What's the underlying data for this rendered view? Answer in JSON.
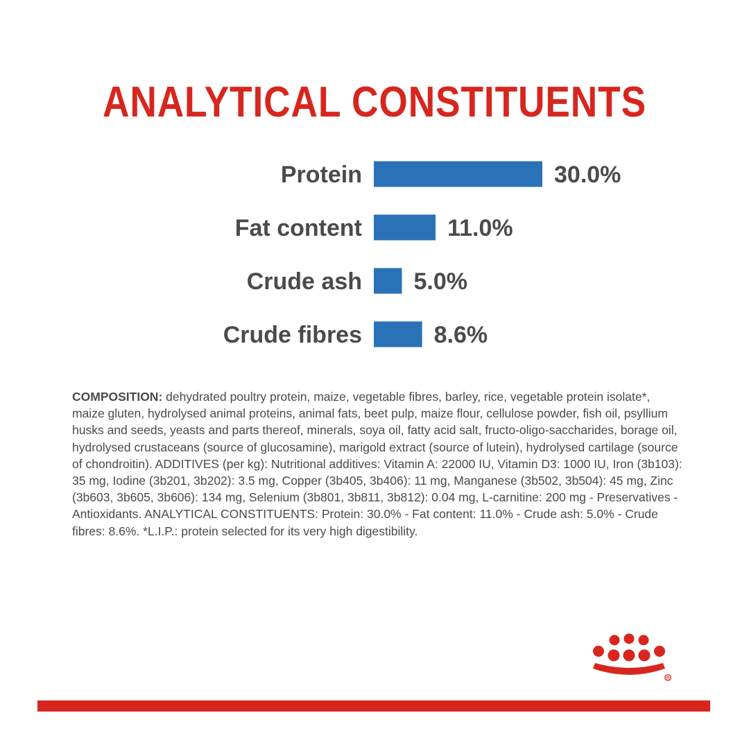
{
  "title": "ANALYTICAL CONSTITUENTS",
  "chart_data": {
    "type": "bar",
    "orientation": "horizontal",
    "categories": [
      "Protein",
      "Fat content",
      "Crude ash",
      "Crude fibres"
    ],
    "values": [
      30.0,
      11.0,
      5.0,
      8.6
    ],
    "value_labels": [
      "30.0%",
      "11.0%",
      "5.0%",
      "8.6%"
    ],
    "bar_color": "#2a72b8"
  },
  "composition": {
    "lead": "COMPOSITION:",
    "text": " dehydrated poultry protein, maize, vegetable fibres, barley, rice, vegetable protein isolate*, maize gluten, hydrolysed animal proteins, animal fats, beet pulp, maize flour, cellulose powder, fish oil, psyllium husks and seeds, yeasts and parts thereof, minerals, soya oil, fatty acid salt, fructo-oligo-saccharides, borage oil, hydrolysed crustaceans (source of glucosamine), marigold extract (source of lutein), hydrolysed cartilage (source of chondroitin). ADDITIVES (per kg): Nutritional additives: Vitamin A: 22000 IU, Vitamin D3: 1000 IU, Iron (3b103): 35 mg, Iodine (3b201, 3b202): 3.5 mg, Copper (3b405, 3b406): 11 mg, Manganese (3b502, 3b504): 45 mg, Zinc (3b603, 3b605, 3b606): 134 mg, Selenium (3b801, 3b811, 3b812): 0.04 mg, L-carnitine: 200 mg - Preservatives - Antioxidants. ANALYTICAL CONSTITUENTS: Protein: 30.0% - Fat content: 11.0% - Crude ash: 5.0% - Crude fibres: 8.6%. *L.I.P.: protein selected for its very high digestibility."
  },
  "logo": {
    "icon": "crown-logo-icon",
    "color": "#d7261e"
  },
  "colors": {
    "accent": "#d7261e",
    "bar": "#2a72b8",
    "text": "#4a4a4a"
  }
}
